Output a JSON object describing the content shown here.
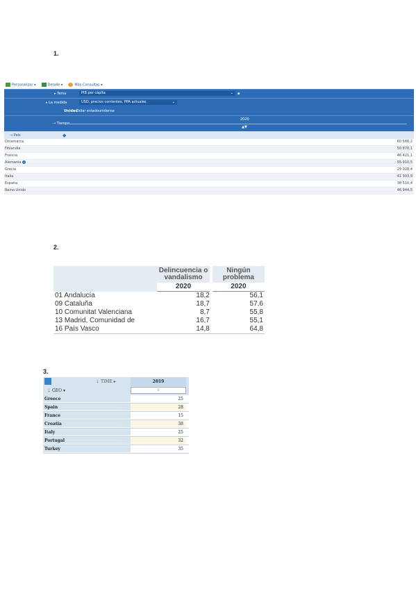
{
  "sections": [
    {
      "number": "1."
    },
    {
      "number": "2."
    },
    {
      "number": "3."
    }
  ],
  "s1": {
    "toolbar": {
      "personalize": "Personalizar",
      "details": "Detalle",
      "more": "Más Consultas"
    },
    "tema_label": "Tema",
    "tema_value": "PIB per cápita",
    "medida_label": "La medida",
    "medida_value": "USD, precios corrientes, PPA actuales",
    "unidad_label": "Unidad",
    "unidad_value": "Dólar estadounidense",
    "tiempo_label": "Tiempo",
    "year": "2020",
    "pais_label": "País",
    "rows": [
      {
        "country": "Dinamarca",
        "value": "60 566,2"
      },
      {
        "country": "Finlandia",
        "value": "50 870,1"
      },
      {
        "country": "Francia",
        "value": "46 421,1"
      },
      {
        "country": "Alemania",
        "value": "55 910,5"
      },
      {
        "country": "Grecia",
        "value": "29 028,4"
      },
      {
        "country": "Italia",
        "value": "41 903,9"
      },
      {
        "country": "España",
        "value": "38 510,4"
      },
      {
        "country": "Reino Unido",
        "value": "46 944,5"
      }
    ]
  },
  "s2": {
    "col1": "Delincuencia o vandalismo",
    "col2": "Ningún problema",
    "year1": "2020",
    "year2": "2020",
    "rows": [
      {
        "region": "01 Andalucía",
        "v1": "18,2",
        "v2": "56,1"
      },
      {
        "region": "09 Cataluña",
        "v1": "18,7",
        "v2": "57,6"
      },
      {
        "region": "10 Comunitat Valenciana",
        "v1": "8,7",
        "v2": "55,8"
      },
      {
        "region": "13 Madrid, Comunidad de",
        "v1": "16,7",
        "v2": "55,1"
      },
      {
        "region": "16 País Vasco",
        "v1": "14,8",
        "v2": "64,8"
      }
    ]
  },
  "s3": {
    "time_label": "TIME",
    "geo_label": "GEO",
    "year": "2019",
    "rows": [
      {
        "country": "Greece",
        "value": "25"
      },
      {
        "country": "Spain",
        "value": "28"
      },
      {
        "country": "France",
        "value": "15"
      },
      {
        "country": "Croatia",
        "value": "38"
      },
      {
        "country": "Italy",
        "value": "25"
      },
      {
        "country": "Portugal",
        "value": "32"
      },
      {
        "country": "Turkey",
        "value": "35"
      }
    ]
  }
}
